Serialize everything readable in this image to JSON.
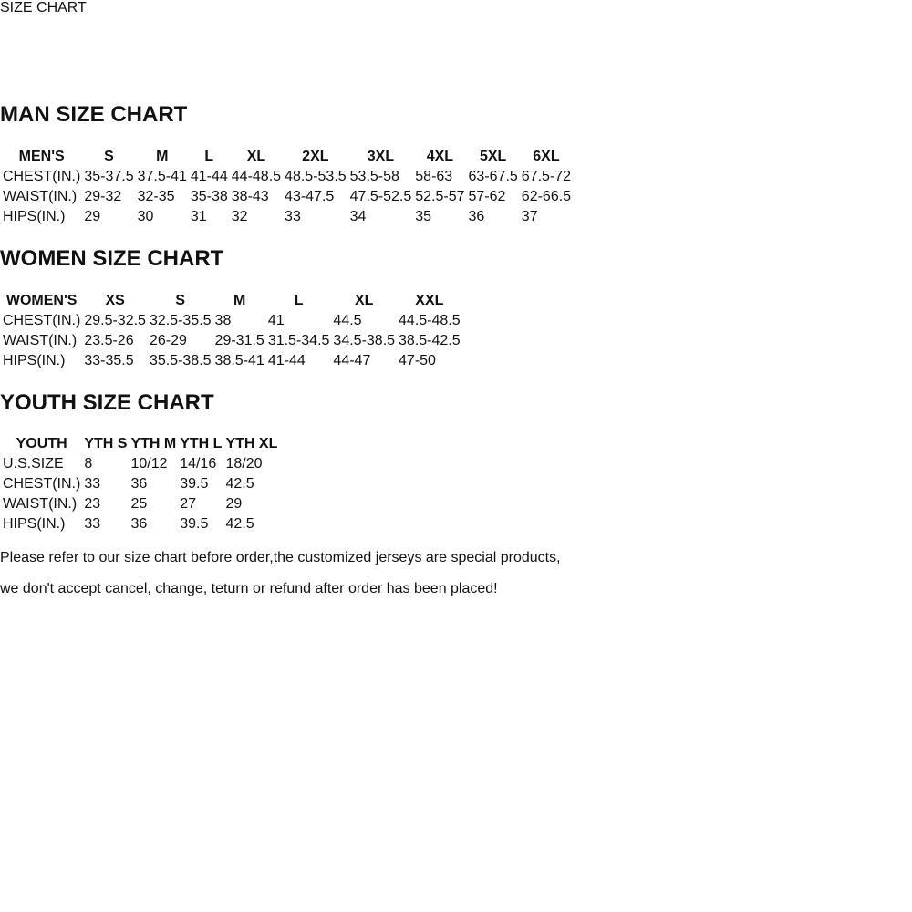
{
  "banner": {
    "title": "SIZE CHART"
  },
  "sections": [
    {
      "heading": "MAN SIZE CHART",
      "table": {
        "name": "mens",
        "header": [
          "MEN'S",
          "S",
          "M",
          "L",
          "XL",
          "2XL",
          "3XL",
          "4XL",
          "5XL",
          "6XL"
        ],
        "rows": [
          {
            "label": "CHEST(IN.)",
            "shade": true,
            "values": [
              "35-37.5",
              "37.5-41",
              "41-44",
              "44-48.5",
              "48.5-53.5",
              "53.5-58",
              "58-63",
              "63-67.5",
              "67.5-72"
            ]
          },
          {
            "label": "WAIST(IN.)",
            "shade": false,
            "values": [
              "29-32",
              "32-35",
              "35-38",
              "38-43",
              "43-47.5",
              "47.5-52.5",
              "52.5-57",
              "57-62",
              "62-66.5"
            ]
          },
          {
            "label": "HIPS(IN.)",
            "shade": true,
            "values": [
              "29",
              "30",
              "31",
              "32",
              "33",
              "34",
              "35",
              "36",
              "37"
            ]
          }
        ]
      }
    },
    {
      "heading": "WOMEN SIZE CHART",
      "table": {
        "name": "womens",
        "header": [
          "WOMEN'S",
          "XS",
          "S",
          "M",
          "L",
          "XL",
          "XXL"
        ],
        "rows": [
          {
            "label": "CHEST(IN.)",
            "shade": false,
            "values": [
              "29.5-32.5",
              "32.5-35.5",
              "38",
              "41",
              "44.5",
              "44.5-48.5"
            ]
          },
          {
            "label": "WAIST(IN.)",
            "shade": false,
            "values": [
              "23.5-26",
              "26-29",
              "29-31.5",
              "31.5-34.5",
              "34.5-38.5",
              "38.5-42.5"
            ]
          },
          {
            "label": "HIPS(IN.)",
            "shade": true,
            "values": [
              "33-35.5",
              "35.5-38.5",
              "38.5-41",
              "41-44",
              "44-47",
              "47-50"
            ]
          }
        ]
      }
    },
    {
      "heading": "YOUTH SIZE CHART",
      "table": {
        "name": "youth",
        "header": [
          "YOUTH",
          "YTH S",
          "YTH M",
          "YTH L",
          "YTH XL"
        ],
        "rows": [
          {
            "label": "U.S.SIZE",
            "shade": true,
            "values": [
              "8",
              "10/12",
              "14/16",
              "18/20"
            ]
          },
          {
            "label": "CHEST(IN.)",
            "shade": false,
            "values": [
              "33",
              "36",
              "39.5",
              "42.5"
            ]
          },
          {
            "label": "WAIST(IN.)",
            "shade": true,
            "values": [
              "23",
              "25",
              "27",
              "29"
            ]
          },
          {
            "label": "HIPS(IN.)",
            "shade": false,
            "values": [
              "33",
              "36",
              "39.5",
              "42.5"
            ]
          }
        ]
      }
    }
  ],
  "footer": {
    "line1": "Please refer to our size chart before order,the customized jerseys are special products,",
    "line2": "we don't accept cancel, change, teturn or refund after order has been placed!"
  },
  "colors": {
    "banner_orange": "#F5A01A",
    "header_black": "#161616",
    "row_shade": "#D9D9D9",
    "footer_red": "#B22222"
  }
}
